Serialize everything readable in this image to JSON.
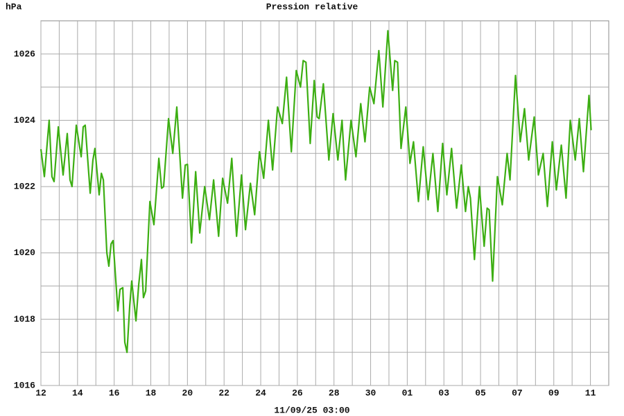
{
  "chart_data": {
    "type": "line",
    "title": "Pression relative",
    "ylabel": "hPa",
    "xlabel": "11/09/25 03:00",
    "color": "#3cae12",
    "grid": true,
    "xlim": [
      0,
      31
    ],
    "ylim": [
      1016,
      1027
    ],
    "xticks": [
      {
        "value": 0,
        "label": "12"
      },
      {
        "value": 1,
        "label": null
      },
      {
        "value": 2,
        "label": "14"
      },
      {
        "value": 3,
        "label": null
      },
      {
        "value": 4,
        "label": "16"
      },
      {
        "value": 5,
        "label": null
      },
      {
        "value": 6,
        "label": "18"
      },
      {
        "value": 7,
        "label": null
      },
      {
        "value": 8,
        "label": "20"
      },
      {
        "value": 9,
        "label": null
      },
      {
        "value": 10,
        "label": "22"
      },
      {
        "value": 11,
        "label": null
      },
      {
        "value": 12,
        "label": "24"
      },
      {
        "value": 13,
        "label": null
      },
      {
        "value": 14,
        "label": "26"
      },
      {
        "value": 15,
        "label": null
      },
      {
        "value": 16,
        "label": "28"
      },
      {
        "value": 17,
        "label": null
      },
      {
        "value": 18,
        "label": "30"
      },
      {
        "value": 19,
        "label": null
      },
      {
        "value": 20,
        "label": "01"
      },
      {
        "value": 21,
        "label": null
      },
      {
        "value": 22,
        "label": "03"
      },
      {
        "value": 23,
        "label": null
      },
      {
        "value": 24,
        "label": "05"
      },
      {
        "value": 25,
        "label": null
      },
      {
        "value": 26,
        "label": "07"
      },
      {
        "value": 27,
        "label": null
      },
      {
        "value": 28,
        "label": "09"
      },
      {
        "value": 29,
        "label": null
      },
      {
        "value": 30,
        "label": "11"
      }
    ],
    "yticks": [
      1016,
      {
        "value": 1017,
        "label": null
      },
      1018,
      {
        "value": 1019,
        "label": null
      },
      1020,
      {
        "value": 1021,
        "label": null
      },
      1022,
      {
        "value": 1023,
        "label": null
      },
      1024,
      {
        "value": 1025,
        "label": null
      },
      1026
    ],
    "x": [
      0,
      0.19,
      0.45,
      0.6,
      0.72,
      0.95,
      1.21,
      1.44,
      1.59,
      1.7,
      1.93,
      2.2,
      2.31,
      2.42,
      2.69,
      2.84,
      2.95,
      3.18,
      3.3,
      3.41,
      3.6,
      3.71,
      3.83,
      3.94,
      4.2,
      4.32,
      4.47,
      4.58,
      4.7,
      4.85,
      4.96,
      5.19,
      5.34,
      5.49,
      5.6,
      5.72,
      5.95,
      6.17,
      6.44,
      6.59,
      6.7,
      6.97,
      7.2,
      7.42,
      7.73,
      7.88,
      8.0,
      8.22,
      8.45,
      8.67,
      8.94,
      9.2,
      9.43,
      9.7,
      9.92,
      10.19,
      10.42,
      10.68,
      10.95,
      11.17,
      11.44,
      11.67,
      11.93,
      12.16,
      12.42,
      12.65,
      12.92,
      13.18,
      13.41,
      13.67,
      13.94,
      14.17,
      14.32,
      14.47,
      14.7,
      14.92,
      15.08,
      15.19,
      15.42,
      15.72,
      15.95,
      16.21,
      16.44,
      16.63,
      16.93,
      17.2,
      17.46,
      17.69,
      17.95,
      18.18,
      18.45,
      18.67,
      18.94,
      19.2,
      19.32,
      19.47,
      19.66,
      19.92,
      20.15,
      20.34,
      20.61,
      20.87,
      21.14,
      21.4,
      21.67,
      21.93,
      22.16,
      22.42,
      22.69,
      22.95,
      23.18,
      23.33,
      23.45,
      23.67,
      23.94,
      24.2,
      24.36,
      24.47,
      24.66,
      24.92,
      25.19,
      25.45,
      25.61,
      25.91,
      26.17,
      26.4,
      26.63,
      26.93,
      27.16,
      27.42,
      27.65,
      27.92,
      28.14,
      28.41,
      28.67,
      28.9,
      29.17,
      29.39,
      29.62,
      29.92,
      30.04
    ],
    "values": [
      1023.13,
      1022.3,
      1024.0,
      1022.3,
      1022.15,
      1023.8,
      1022.35,
      1023.6,
      1022.2,
      1022.0,
      1023.85,
      1022.9,
      1023.8,
      1023.85,
      1021.8,
      1022.8,
      1023.15,
      1021.75,
      1022.4,
      1022.2,
      1020.0,
      1019.6,
      1020.27,
      1020.37,
      1018.25,
      1018.9,
      1018.95,
      1017.3,
      1017.0,
      1018.4,
      1019.15,
      1017.95,
      1019.05,
      1019.8,
      1018.65,
      1018.85,
      1021.55,
      1020.85,
      1022.85,
      1021.95,
      1022.0,
      1024.05,
      1023.0,
      1024.4,
      1021.65,
      1022.65,
      1022.67,
      1020.3,
      1022.45,
      1020.6,
      1022.0,
      1021.0,
      1022.2,
      1020.5,
      1022.25,
      1021.5,
      1022.85,
      1020.5,
      1022.35,
      1020.7,
      1022.1,
      1021.15,
      1023.05,
      1022.25,
      1024.0,
      1022.5,
      1024.4,
      1023.9,
      1025.3,
      1023.05,
      1025.5,
      1025.0,
      1025.8,
      1025.75,
      1023.3,
      1025.2,
      1024.1,
      1024.05,
      1025.1,
      1022.8,
      1024.2,
      1022.8,
      1024.0,
      1022.2,
      1024.0,
      1022.9,
      1024.5,
      1023.35,
      1025.0,
      1024.5,
      1026.1,
      1024.4,
      1026.7,
      1024.9,
      1025.8,
      1025.75,
      1023.15,
      1024.4,
      1022.7,
      1023.35,
      1021.55,
      1023.2,
      1021.6,
      1023.0,
      1021.25,
      1023.3,
      1021.75,
      1023.15,
      1021.35,
      1022.65,
      1021.25,
      1022.0,
      1021.65,
      1019.8,
      1022.0,
      1020.2,
      1021.35,
      1021.3,
      1019.15,
      1022.3,
      1021.45,
      1023.0,
      1022.2,
      1025.35,
      1023.35,
      1024.35,
      1022.8,
      1024.1,
      1022.35,
      1023.0,
      1021.4,
      1023.35,
      1021.9,
      1023.25,
      1021.65,
      1024.0,
      1022.8,
      1024.05,
      1022.45,
      1024.75,
      1023.7
    ]
  }
}
